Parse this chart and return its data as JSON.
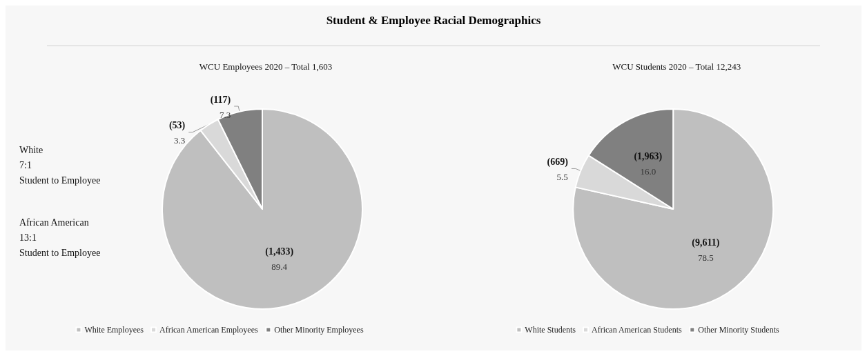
{
  "chart_data": [
    {
      "type": "pie",
      "title": "Student & Employee Racial Demographics",
      "subtitle": "WCU Employees 2020 – Total 1,603",
      "categories": [
        "White Employees",
        "African American Employees",
        "Other Minority Employees"
      ],
      "values": [
        89.4,
        3.3,
        7.3
      ],
      "value_labels": [
        "89.4",
        "3.3",
        "7.3"
      ],
      "colors": [
        "#bfbfbf",
        "#d9d9d9",
        "#808080"
      ],
      "legend": "bottom",
      "annotations": [
        {
          "text": "(1,433)",
          "x": "White Employees"
        },
        {
          "text": "(53)",
          "x": "African American Employees"
        },
        {
          "text": "(117)",
          "x": "Other Minority Employees"
        },
        "White\n7:1\nStudent to Employee",
        "African American\n13:1\nStudent to Employee"
      ]
    },
    {
      "type": "pie",
      "subtitle": "WCU Students 2020 – Total 12,243",
      "categories": [
        "White Students",
        "African American Students",
        "Other Minority Students"
      ],
      "values": [
        78.5,
        5.5,
        16.0
      ],
      "value_labels": [
        "78.5",
        "5.5",
        "16.0"
      ],
      "colors": [
        "#bfbfbf",
        "#d9d9d9",
        "#808080"
      ],
      "legend": "bottom",
      "annotations": [
        {
          "text": "(9,611)",
          "x": "White Students"
        },
        {
          "text": "(669)",
          "x": "African American Students"
        },
        {
          "text": "(1,963)",
          "x": "Other Minority Students"
        }
      ]
    }
  ]
}
